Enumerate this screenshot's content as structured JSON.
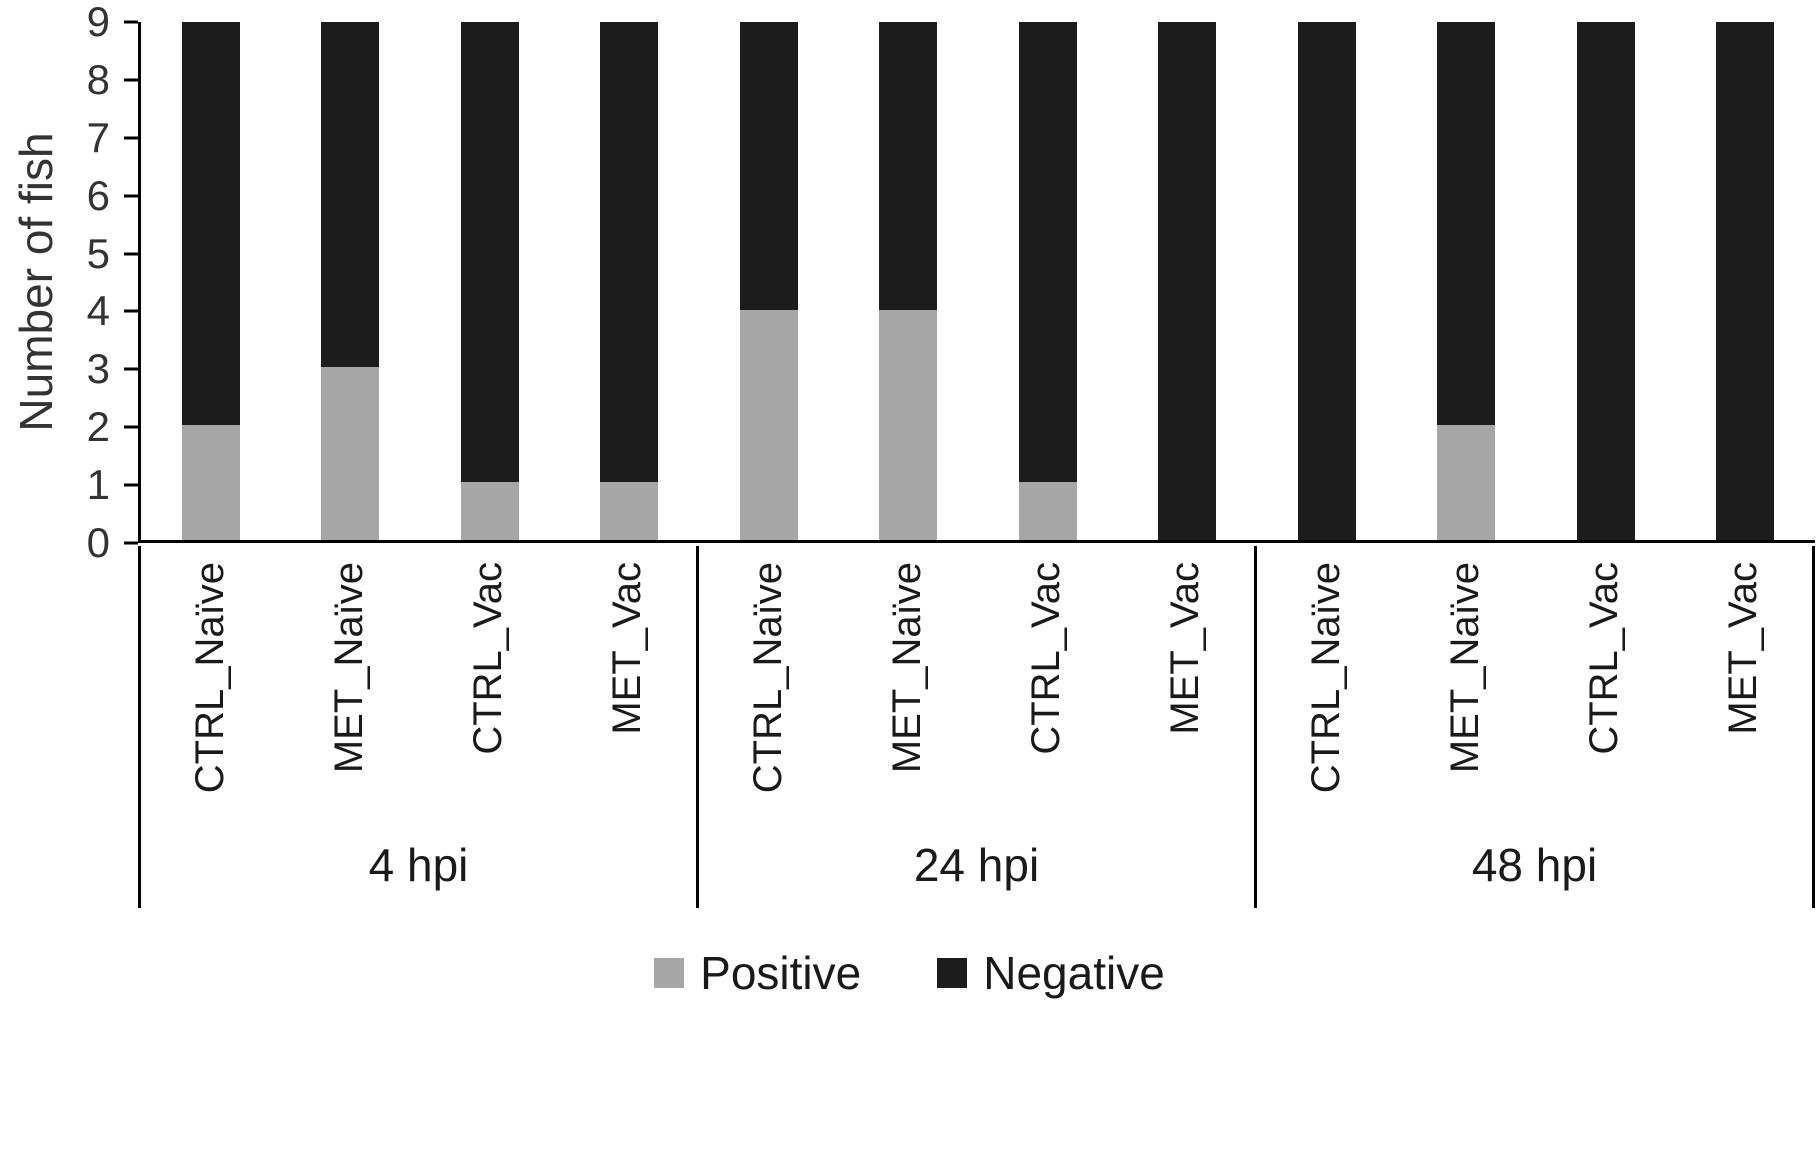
{
  "chart_data": {
    "type": "bar",
    "stacked": true,
    "title": "",
    "ylabel": "Number of fish",
    "xlabel": "",
    "ylim": [
      0,
      9
    ],
    "ytick_step": 1,
    "grid": false,
    "legend_position": "bottom",
    "groups": [
      {
        "label": "4 hpi",
        "categories": [
          "CTRL_Naïve",
          "MET_Naïve",
          "CTRL_Vac",
          "MET_Vac"
        ]
      },
      {
        "label": "24 hpi",
        "categories": [
          "CTRL_Naïve",
          "MET_Naïve",
          "CTRL_Vac",
          "MET_Vac"
        ]
      },
      {
        "label": "48 hpi",
        "categories": [
          "CTRL_Naïve",
          "MET_Naïve",
          "CTRL_Vac",
          "MET_Vac"
        ]
      }
    ],
    "series": [
      {
        "name": "Positive",
        "color": "#a6a6a6",
        "values": [
          [
            2,
            3,
            1,
            1
          ],
          [
            4,
            4,
            1,
            0
          ],
          [
            0,
            2,
            0,
            0
          ]
        ]
      },
      {
        "name": "Negative",
        "color": "#1c1c1c",
        "values": [
          [
            7,
            6,
            8,
            8
          ],
          [
            5,
            5,
            8,
            9
          ],
          [
            9,
            7,
            9,
            9
          ]
        ]
      }
    ],
    "yticks": [
      0,
      1,
      2,
      3,
      4,
      5,
      6,
      7,
      8,
      9
    ]
  }
}
